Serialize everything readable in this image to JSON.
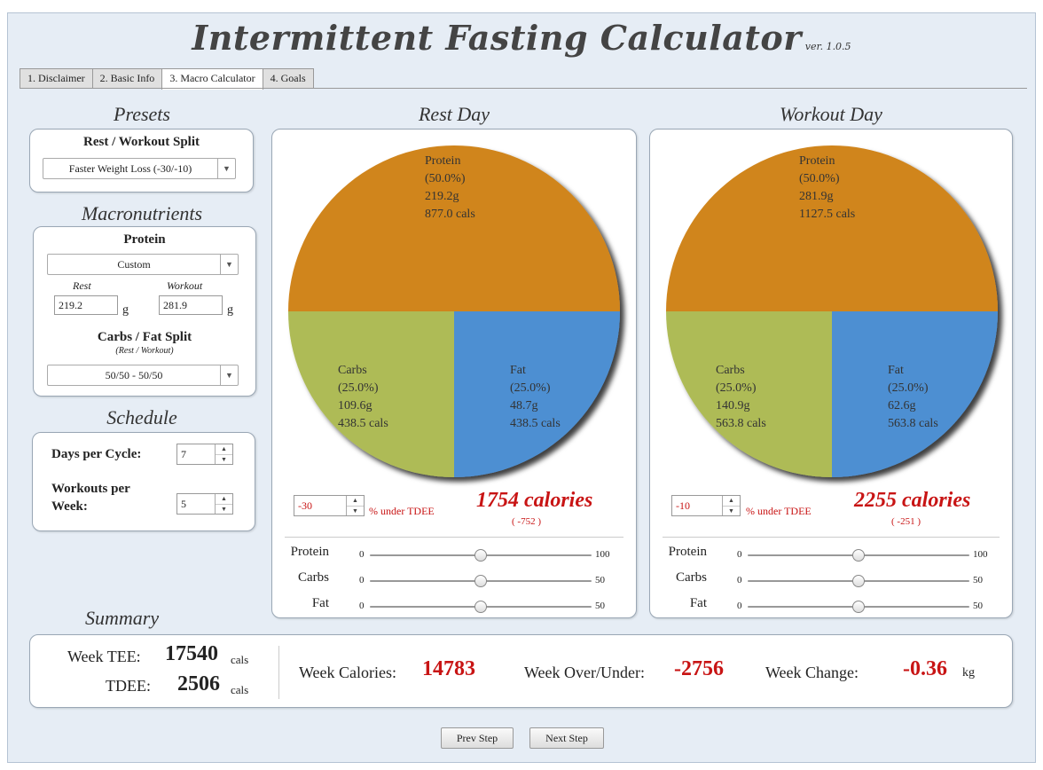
{
  "app": {
    "title": "Intermittent Fasting Calculator",
    "version": "ver. 1.0.5"
  },
  "tabs": [
    {
      "label": "1. Disclaimer"
    },
    {
      "label": "2. Basic Info"
    },
    {
      "label": "3. Macro Calculator",
      "active": true
    },
    {
      "label": "4. Goals"
    }
  ],
  "presets": {
    "title": "Presets",
    "split_label": "Rest / Workout Split",
    "split_value": "Faster Weight Loss (-30/-10)"
  },
  "macros": {
    "title": "Macronutrients",
    "protein_label": "Protein",
    "protein_mode": "Custom",
    "rest_label": "Rest",
    "workout_label": "Workout",
    "rest_value": "219.2",
    "workout_value": "281.9",
    "unit": "g",
    "split_label": "Carbs / Fat Split",
    "split_sub": "(Rest / Workout)",
    "split_value": "50/50 - 50/50"
  },
  "schedule": {
    "title": "Schedule",
    "days_label": "Days per Cycle:",
    "days_value": "7",
    "workouts_label_1": "Workouts per",
    "workouts_label_2": "Week:",
    "workouts_value": "5"
  },
  "rest_day": {
    "title": "Rest Day",
    "protein": {
      "name": "Protein",
      "pct": "(50.0%)",
      "grams": "219.2g",
      "cals": "877.0 cals",
      "fraction": 0.5
    },
    "carbs": {
      "name": "Carbs",
      "pct": "(25.0%)",
      "grams": "109.6g",
      "cals": "438.5 cals",
      "fraction": 0.25
    },
    "fat": {
      "name": "Fat",
      "pct": "(25.0%)",
      "grams": "48.7g",
      "cals": "438.5 cals",
      "fraction": 0.25
    },
    "tdee_offset": "-30",
    "under_label": "% under TDEE",
    "calories": "1754 calories",
    "delta": "( -752 )",
    "sliders": [
      {
        "name": "Protein",
        "min": "0",
        "max": "100",
        "value": 50,
        "maxnum": 100
      },
      {
        "name": "Carbs",
        "min": "0",
        "max": "50",
        "value": 25,
        "maxnum": 50
      },
      {
        "name": "Fat",
        "min": "0",
        "max": "50",
        "value": 25,
        "maxnum": 50
      }
    ]
  },
  "workout_day": {
    "title": "Workout Day",
    "protein": {
      "name": "Protein",
      "pct": "(50.0%)",
      "grams": "281.9g",
      "cals": "1127.5 cals",
      "fraction": 0.5
    },
    "carbs": {
      "name": "Carbs",
      "pct": "(25.0%)",
      "grams": "140.9g",
      "cals": "563.8 cals",
      "fraction": 0.25
    },
    "fat": {
      "name": "Fat",
      "pct": "(25.0%)",
      "grams": "62.6g",
      "cals": "563.8 cals",
      "fraction": 0.25
    },
    "tdee_offset": "-10",
    "under_label": "% under TDEE",
    "calories": "2255 calories",
    "delta": "( -251 )",
    "sliders": [
      {
        "name": "Protein",
        "min": "0",
        "max": "100",
        "value": 50,
        "maxnum": 100
      },
      {
        "name": "Carbs",
        "min": "0",
        "max": "50",
        "value": 25,
        "maxnum": 50
      },
      {
        "name": "Fat",
        "min": "0",
        "max": "50",
        "value": 25,
        "maxnum": 50
      }
    ]
  },
  "summary": {
    "title": "Summary",
    "week_tee_label": "Week TEE:",
    "week_tee_value": "17540",
    "tdee_label": "TDEE:",
    "tdee_value": "2506",
    "cals_unit": "cals",
    "week_cal_label": "Week Calories:",
    "week_cal_value": "14783",
    "week_ou_label": "Week Over/Under:",
    "week_ou_value": "-2756",
    "week_change_label": "Week Change:",
    "week_change_value": "-0.36",
    "kg_unit": "kg"
  },
  "nav": {
    "prev": "Prev Step",
    "next": "Next Step"
  },
  "colors": {
    "protein": "#d0851f",
    "carbs": "#aebb56",
    "fat": "#4e8fd2",
    "accent_red": "#c81414"
  }
}
